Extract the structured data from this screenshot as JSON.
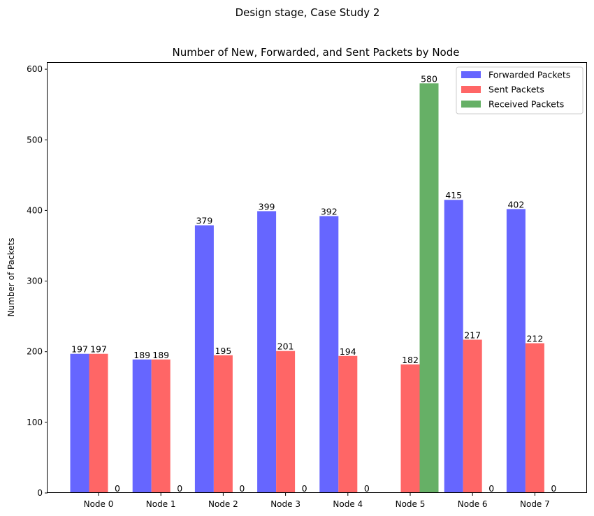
{
  "suptitle": "Design stage, Case Study 2",
  "chart_data": {
    "type": "bar",
    "title": "Number of New, Forwarded, and Sent Packets by Node",
    "xlabel": "",
    "ylabel": "Number of Packets",
    "categories": [
      "Node 0",
      "Node 1",
      "Node 2",
      "Node 3",
      "Node 4",
      "Node 5",
      "Node 6",
      "Node 7"
    ],
    "series": [
      {
        "name": "Forwarded Packets",
        "color": "#6666ff",
        "values": [
          197,
          189,
          379,
          399,
          392,
          0,
          415,
          402
        ],
        "labels": [
          "197",
          "189",
          "379",
          "399",
          "392",
          "",
          "415",
          "402"
        ]
      },
      {
        "name": "Sent Packets",
        "color": "#ff6666",
        "values": [
          197,
          189,
          195,
          201,
          194,
          182,
          217,
          212
        ],
        "labels": [
          "197",
          "189",
          "195",
          "201",
          "194",
          "182",
          "217",
          "212"
        ]
      },
      {
        "name": "Received Packets",
        "color": "#66b066",
        "values": [
          0,
          0,
          0,
          0,
          0,
          580,
          0,
          0
        ],
        "labels": [
          "0",
          "0",
          "0",
          "0",
          "0",
          "580",
          "0",
          "0"
        ]
      }
    ],
    "ylim": [
      0,
      609
    ],
    "yticks": [
      0,
      100,
      200,
      300,
      400,
      500,
      600
    ],
    "ytick_labels": [
      "0",
      "100",
      "200",
      "300",
      "400",
      "500",
      "600"
    ],
    "grid": false,
    "legend_position": "top-right"
  }
}
